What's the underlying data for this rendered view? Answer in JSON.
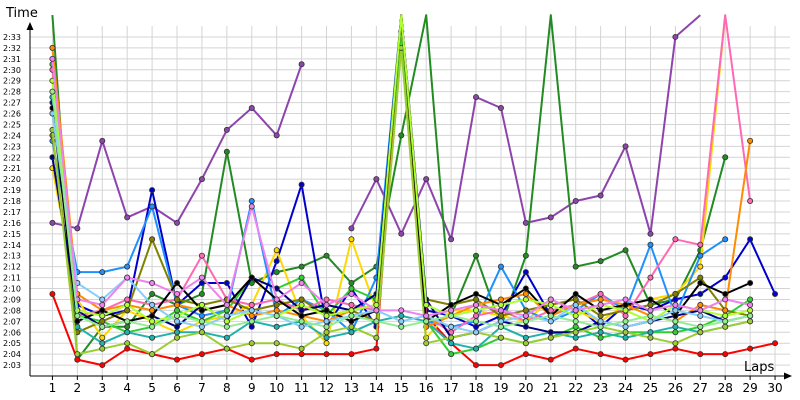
{
  "chart_data": {
    "type": "line",
    "title": "",
    "xlabel": "Laps",
    "ylabel": "Time",
    "x": [
      1,
      2,
      3,
      4,
      5,
      6,
      7,
      8,
      9,
      10,
      11,
      12,
      13,
      14,
      15,
      16,
      17,
      18,
      19,
      20,
      21,
      22,
      23,
      24,
      25,
      26,
      27,
      28,
      29,
      30
    ],
    "xlim": [
      0.1,
      30.6
    ],
    "ylim": [
      122,
      154
    ],
    "y_tick_values": [
      123,
      124,
      125,
      126,
      127,
      128,
      129,
      130,
      131,
      132,
      133,
      134,
      135,
      136,
      137,
      138,
      139,
      140,
      141,
      142,
      143,
      144,
      145,
      146,
      147,
      148,
      149,
      150,
      151,
      152,
      153
    ],
    "y_tick_labels": [
      "2:03",
      "2:04",
      "2:05",
      "2:06",
      "2:07",
      "2:08",
      "2:09",
      "2:10",
      "2:11",
      "2:12",
      "2:13",
      "2:14",
      "2:15",
      "2:16",
      "2:17",
      "2:18",
      "2:19",
      "2:20",
      "2:21",
      "2:22",
      "2:23",
      "2:24",
      "2:25",
      "2:26",
      "2:27",
      "2:28",
      "2:29",
      "2:30",
      "2:31",
      "2:32",
      "2:33"
    ],
    "grid": true,
    "legend": "none",
    "series": [
      {
        "color": "#8e44ad",
        "values": [
          136.0,
          135.5,
          143.5,
          136.5,
          137.5,
          136.0,
          140.0,
          144.5,
          146.5,
          144.0,
          150.5,
          null,
          135.5,
          140.0,
          135.0,
          140.0,
          134.5,
          147.5,
          146.5,
          136.0,
          136.5,
          138.0,
          138.5,
          143.0,
          135.0,
          153.0,
          155.0,
          null,
          null,
          null
        ]
      },
      {
        "color": "#228b22",
        "values": [
          155.0,
          123.5,
          126.5,
          126.5,
          129.5,
          128.5,
          129.5,
          142.5,
          130.5,
          131.5,
          132.0,
          133.0,
          130.5,
          132.0,
          144.0,
          155.0,
          127.5,
          133.0,
          126.5,
          133.0,
          155.0,
          132.0,
          132.5,
          133.5,
          128.5,
          129.0,
          133.5,
          142.0,
          null,
          null
        ]
      },
      {
        "color": "#0000cd",
        "values": [
          147.0,
          128.5,
          127.5,
          128.0,
          139.0,
          128.5,
          130.5,
          130.5,
          126.5,
          132.5,
          139.5,
          126.5,
          130.0,
          126.5,
          155.0,
          128.0,
          127.5,
          126.5,
          127.5,
          131.5,
          127.5,
          128.5,
          126.5,
          128.5,
          128.0,
          129.0,
          129.5,
          131.0,
          134.5,
          129.5
        ]
      },
      {
        "color": "#ff0000",
        "values": [
          129.5,
          123.5,
          123.0,
          124.5,
          124.0,
          123.5,
          124.0,
          124.5,
          123.5,
          124.0,
          124.0,
          124.0,
          124.0,
          124.5,
          155.0,
          127.5,
          125.0,
          123.0,
          123.0,
          124.0,
          123.5,
          124.5,
          124.0,
          123.5,
          124.0,
          124.5,
          124.0,
          124.0,
          124.5,
          125.0
        ]
      },
      {
        "color": "#ffd700",
        "values": [
          141.0,
          129.0,
          125.5,
          128.0,
          127.0,
          126.0,
          127.0,
          127.5,
          128.5,
          133.5,
          127.5,
          125.0,
          134.5,
          128.0,
          155.0,
          125.5,
          128.0,
          128.0,
          127.5,
          127.0,
          129.0,
          128.0,
          127.0,
          128.5,
          129.0,
          129.5,
          132.0,
          155.0,
          null,
          null
        ]
      },
      {
        "color": "#1e90ff",
        "values": [
          143.5,
          131.5,
          131.5,
          132.0,
          137.5,
          128.5,
          127.5,
          128.0,
          138.0,
          127.5,
          129.0,
          128.0,
          126.0,
          131.0,
          155.0,
          127.0,
          126.5,
          127.0,
          132.0,
          128.0,
          127.0,
          128.0,
          129.5,
          128.0,
          134.0,
          127.5,
          133.0,
          134.5,
          null,
          null
        ]
      },
      {
        "color": "#32cd32",
        "values": [
          150.5,
          127.5,
          127.0,
          126.0,
          126.5,
          128.0,
          127.0,
          128.0,
          131.0,
          130.0,
          131.0,
          127.5,
          130.0,
          129.0,
          153.5,
          127.0,
          124.0,
          124.5,
          125.5,
          125.0,
          125.5,
          126.5,
          125.5,
          126.0,
          126.0,
          126.0,
          126.5,
          127.5,
          129.0,
          null
        ]
      },
      {
        "color": "#ff69b4",
        "values": [
          150.0,
          127.5,
          128.0,
          129.0,
          128.5,
          129.0,
          133.0,
          129.0,
          128.5,
          129.0,
          128.0,
          129.0,
          128.5,
          128.0,
          155.0,
          127.5,
          126.0,
          127.5,
          128.0,
          127.0,
          128.0,
          128.5,
          129.5,
          127.5,
          131.0,
          134.5,
          134.0,
          155.0,
          138.0,
          null
        ]
      },
      {
        "color": "#808000",
        "values": [
          144.0,
          126.0,
          127.0,
          128.0,
          134.5,
          129.0,
          128.5,
          129.0,
          128.0,
          128.5,
          129.0,
          127.5,
          128.0,
          127.0,
          155.0,
          129.0,
          128.5,
          129.0,
          127.5,
          128.0,
          128.5,
          129.0,
          127.5,
          128.0,
          128.5,
          129.5,
          131.0,
          128.0,
          127.5,
          null
        ]
      },
      {
        "color": "#20b2aa",
        "values": [
          147.5,
          126.5,
          125.0,
          126.0,
          125.5,
          126.0,
          126.0,
          125.5,
          127.0,
          126.5,
          127.0,
          125.5,
          126.0,
          127.0,
          127.5,
          127.0,
          125.0,
          124.5,
          126.5,
          125.5,
          126.0,
          125.5,
          126.0,
          125.5,
          126.0,
          126.5,
          126.0,
          126.5,
          127.0,
          null
        ]
      },
      {
        "color": "#ff8c00",
        "values": [
          152.0,
          129.5,
          128.0,
          128.5,
          128.0,
          128.5,
          128.0,
          128.5,
          127.5,
          128.0,
          127.5,
          127.0,
          128.0,
          128.5,
          155.0,
          126.5,
          127.5,
          128.5,
          129.0,
          129.5,
          127.5,
          128.5,
          129.0,
          128.5,
          127.5,
          127.0,
          128.5,
          128.0,
          143.5,
          null
        ]
      },
      {
        "color": "#000080",
        "values": [
          142.0,
          128.0,
          126.5,
          127.0,
          127.5,
          126.5,
          128.5,
          127.0,
          131.0,
          130.0,
          128.0,
          128.5,
          128.0,
          129.5,
          155.0,
          129.0,
          125.5,
          126.0,
          127.0,
          126.5,
          126.0,
          126.0,
          127.0,
          126.5,
          127.0,
          127.5,
          128.0,
          127.0,
          127.5,
          null
        ]
      },
      {
        "color": "#9acd32",
        "values": [
          144.5,
          124.0,
          124.5,
          125.0,
          124.0,
          125.5,
          126.0,
          124.5,
          125.0,
          125.0,
          124.5,
          126.0,
          126.5,
          125.5,
          152.0,
          125.0,
          125.5,
          126.0,
          125.5,
          125.0,
          125.5,
          126.0,
          126.5,
          126.0,
          125.5,
          125.0,
          126.0,
          126.5,
          127.0,
          null
        ]
      },
      {
        "color": "#000000",
        "values": [
          146.5,
          127.0,
          128.0,
          127.0,
          127.5,
          130.5,
          128.0,
          128.5,
          131.0,
          129.0,
          127.5,
          128.0,
          127.0,
          128.0,
          155.0,
          127.0,
          128.5,
          129.5,
          128.5,
          130.0,
          127.5,
          129.5,
          128.0,
          128.5,
          129.0,
          127.5,
          130.5,
          129.5,
          130.5,
          null
        ]
      },
      {
        "color": "#adff2f",
        "values": [
          149.0,
          128.0,
          127.5,
          128.5,
          127.0,
          127.5,
          128.5,
          127.0,
          128.0,
          127.5,
          128.5,
          127.5,
          128.0,
          128.5,
          155.0,
          128.5,
          127.5,
          128.0,
          128.5,
          129.0,
          128.5,
          127.5,
          128.5,
          128.0,
          127.0,
          128.5,
          128.0,
          127.5,
          128.0,
          null
        ]
      },
      {
        "color": "#87cefa",
        "values": [
          146.0,
          130.5,
          129.0,
          131.0,
          128.5,
          127.0,
          126.5,
          127.5,
          128.0,
          127.5,
          126.5,
          127.0,
          127.5,
          128.0,
          127.0,
          127.5,
          126.5,
          126.0,
          127.0,
          127.5,
          127.0,
          128.5,
          127.0,
          126.5,
          127.0,
          128.0,
          127.5,
          127.0,
          127.5,
          null
        ]
      },
      {
        "color": "#ee82ee",
        "values": [
          151.0,
          129.0,
          128.5,
          131.0,
          130.5,
          129.5,
          131.0,
          128.5,
          137.5,
          129.0,
          130.5,
          128.5,
          129.5,
          128.0,
          128.0,
          127.5,
          128.0,
          128.5,
          128.0,
          127.5,
          129.0,
          128.0,
          128.5,
          129.0,
          128.0,
          128.5,
          128.0,
          129.0,
          128.5,
          null
        ]
      },
      {
        "color": "#90ee90",
        "values": [
          148.0,
          127.5,
          126.5,
          127.0,
          126.5,
          127.5,
          127.0,
          126.5,
          127.0,
          127.5,
          127.0,
          126.5,
          127.5,
          127.0,
          126.5,
          127.0,
          127.5,
          127.0,
          126.5,
          127.0,
          127.5,
          127.0,
          126.5,
          127.0,
          127.5,
          127.0,
          126.5,
          127.0,
          127.5,
          null
        ]
      }
    ]
  }
}
